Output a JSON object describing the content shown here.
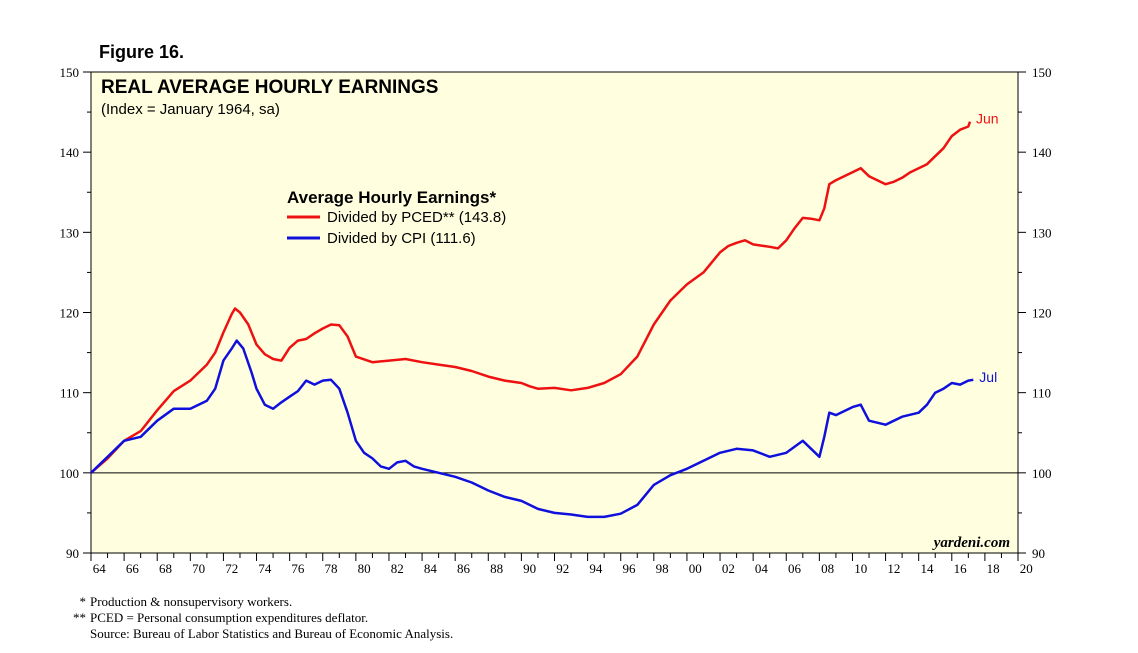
{
  "figure_label": "Figure 16.",
  "footnotes": [
    {
      "symbol": "*",
      "text": "Production & nonsupervisory workers."
    },
    {
      "symbol": "**",
      "text": "PCED = Personal consumption expenditures deflator."
    }
  ],
  "source": "Source: Bureau of Labor Statistics and Bureau of Economic Analysis.",
  "colors": {
    "pced": "#ee1111",
    "cpi": "#1010dd",
    "plot_background": "#ffffe0"
  },
  "chart_data": {
    "type": "line",
    "title": "REAL AVERAGE HOURLY EARNINGS",
    "subtitle": "(Index = January 1964, sa)",
    "legend_title": "Average Hourly Earnings*",
    "legend_placement": "top-center",
    "credit": "yardeni.com",
    "xlim": [
      1964,
      2020
    ],
    "ylim": [
      90,
      150
    ],
    "y_ticks": [
      90,
      100,
      110,
      120,
      130,
      140,
      150
    ],
    "x_tick_labels": [
      "64",
      "66",
      "68",
      "70",
      "72",
      "74",
      "76",
      "78",
      "80",
      "82",
      "84",
      "86",
      "88",
      "90",
      "92",
      "94",
      "96",
      "98",
      "00",
      "02",
      "04",
      "06",
      "08",
      "10",
      "12",
      "14",
      "16",
      "18",
      "20"
    ],
    "x_tick_years": [
      1964,
      1966,
      1968,
      1970,
      1972,
      1974,
      1976,
      1978,
      1980,
      1982,
      1984,
      1986,
      1988,
      1990,
      1992,
      1994,
      1996,
      1998,
      2000,
      2002,
      2004,
      2006,
      2008,
      2010,
      2012,
      2014,
      2016,
      2018,
      2020
    ],
    "reference_line": 100,
    "grid": false,
    "series": [
      {
        "name": "Divided by PCED** (143.8)",
        "end_label": "Jun",
        "x": [
          1964.0,
          1965.0,
          1966.0,
          1967.0,
          1968.0,
          1969.0,
          1970.0,
          1971.0,
          1971.5,
          1972.0,
          1972.5,
          1972.7,
          1973.0,
          1973.5,
          1974.0,
          1974.5,
          1975.0,
          1975.5,
          1976.0,
          1976.5,
          1977.0,
          1977.5,
          1978.0,
          1978.5,
          1979.0,
          1979.5,
          1980.0,
          1981.0,
          1982.0,
          1983.0,
          1984.0,
          1985.0,
          1986.0,
          1987.0,
          1988.0,
          1989.0,
          1990.0,
          1990.5,
          1991.0,
          1992.0,
          1993.0,
          1994.0,
          1995.0,
          1996.0,
          1997.0,
          1998.0,
          1999.0,
          2000.0,
          2001.0,
          2002.0,
          2002.5,
          2003.0,
          2003.5,
          2004.0,
          2005.0,
          2005.5,
          2006.0,
          2006.5,
          2007.0,
          2007.5,
          2008.0,
          2008.3,
          2008.6,
          2009.0,
          2009.5,
          2010.0,
          2010.5,
          2011.0,
          2011.5,
          2012.0,
          2012.5,
          2013.0,
          2013.5,
          2014.0,
          2014.5,
          2015.0,
          2015.5,
          2016.0,
          2016.5,
          2017.0,
          2017.1
        ],
        "values": [
          100.0,
          101.8,
          104.0,
          105.2,
          107.8,
          110.2,
          111.5,
          113.5,
          115.0,
          117.5,
          119.8,
          120.5,
          120.0,
          118.5,
          116.0,
          114.8,
          114.2,
          114.0,
          115.6,
          116.5,
          116.7,
          117.4,
          118.0,
          118.5,
          118.4,
          117.0,
          114.5,
          113.8,
          114.0,
          114.2,
          113.8,
          113.5,
          113.2,
          112.7,
          112.0,
          111.5,
          111.2,
          110.8,
          110.5,
          110.6,
          110.3,
          110.6,
          111.2,
          112.3,
          114.5,
          118.5,
          121.5,
          123.5,
          125.0,
          127.5,
          128.3,
          128.7,
          129.0,
          128.5,
          128.2,
          128.0,
          129.0,
          130.5,
          131.8,
          131.7,
          131.5,
          133.0,
          136.0,
          136.5,
          137.0,
          137.5,
          138.0,
          137.0,
          136.5,
          136.0,
          136.3,
          136.8,
          137.5,
          138.0,
          138.5,
          139.5,
          140.5,
          142.0,
          142.8,
          143.2,
          143.8
        ]
      },
      {
        "name": "Divided by CPI (111.6)",
        "end_label": "Jul",
        "x": [
          1964.0,
          1965.0,
          1966.0,
          1967.0,
          1968.0,
          1969.0,
          1970.0,
          1971.0,
          1971.5,
          1972.0,
          1972.5,
          1972.8,
          1973.2,
          1973.7,
          1974.0,
          1974.5,
          1975.0,
          1975.5,
          1976.0,
          1976.5,
          1977.0,
          1977.5,
          1978.0,
          1978.5,
          1979.0,
          1979.5,
          1980.0,
          1980.5,
          1981.0,
          1981.5,
          1982.0,
          1982.5,
          1983.0,
          1983.5,
          1984.0,
          1985.0,
          1986.0,
          1987.0,
          1988.0,
          1989.0,
          1990.0,
          1990.5,
          1991.0,
          1992.0,
          1993.0,
          1994.0,
          1995.0,
          1996.0,
          1997.0,
          1998.0,
          1999.0,
          2000.0,
          2001.0,
          2002.0,
          2003.0,
          2004.0,
          2005.0,
          2006.0,
          2007.0,
          2007.5,
          2008.0,
          2008.3,
          2008.6,
          2009.0,
          2010.0,
          2010.5,
          2011.0,
          2012.0,
          2013.0,
          2014.0,
          2014.5,
          2015.0,
          2015.5,
          2016.0,
          2016.5,
          2017.0,
          2017.3
        ],
        "values": [
          100.0,
          102.0,
          104.0,
          104.5,
          106.5,
          108.0,
          108.0,
          109.0,
          110.5,
          114.0,
          115.5,
          116.5,
          115.5,
          112.5,
          110.5,
          108.5,
          108.0,
          108.8,
          109.5,
          110.2,
          111.5,
          111.0,
          111.5,
          111.6,
          110.5,
          107.5,
          104.0,
          102.5,
          101.8,
          100.8,
          100.5,
          101.3,
          101.5,
          100.8,
          100.5,
          100.0,
          99.5,
          98.8,
          97.8,
          97.0,
          96.5,
          96.0,
          95.5,
          95.0,
          94.8,
          94.5,
          94.5,
          94.9,
          96.0,
          98.5,
          99.7,
          100.5,
          101.5,
          102.5,
          103.0,
          102.8,
          102.0,
          102.5,
          104.0,
          103.0,
          102.0,
          104.5,
          107.5,
          107.2,
          108.2,
          108.5,
          106.5,
          106.0,
          107.0,
          107.5,
          108.5,
          110.0,
          110.5,
          111.2,
          111.0,
          111.5,
          111.6
        ]
      }
    ]
  }
}
